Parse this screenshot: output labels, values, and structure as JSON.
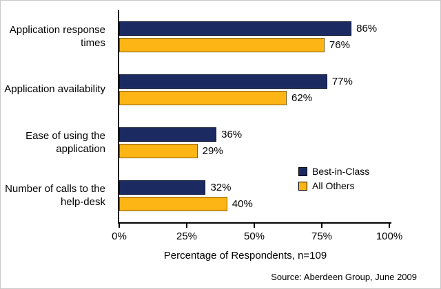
{
  "chart_data": {
    "type": "bar",
    "orientation": "horizontal",
    "categories": [
      "Application response times",
      "Application availability",
      "Ease of using the application",
      "Number of calls to the help-desk"
    ],
    "series": [
      {
        "name": "Best-in-Class",
        "color": "#1B2A60",
        "values": [
          86,
          77,
          36,
          32
        ]
      },
      {
        "name": "All Others",
        "color": "#FCB515",
        "values": [
          76,
          62,
          29,
          40
        ]
      }
    ],
    "value_suffix": "%",
    "x_ticks": [
      "0%",
      "25%",
      "50%",
      "75%",
      "100%"
    ],
    "xlim": [
      0,
      100
    ],
    "grid": false,
    "legend_position": "inside-right-bottom",
    "xlabel": "Percentage of Respondents, n=109",
    "source": "Source: Aberdeen Group, June 2009"
  }
}
